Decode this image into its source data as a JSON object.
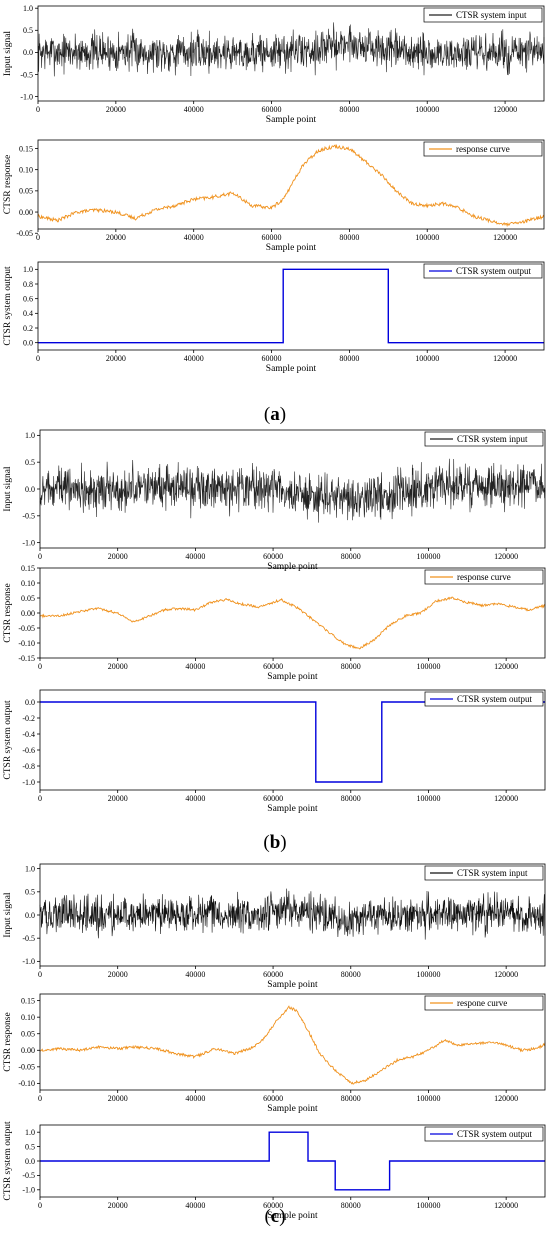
{
  "captions": [
    {
      "open": "(",
      "letter": "a",
      "close": ")"
    },
    {
      "open": "(",
      "letter": "b",
      "close": ")"
    },
    {
      "open": "(",
      "letter": "c",
      "close": ")"
    }
  ],
  "chart_data": [
    {
      "type": "line",
      "panel": "a",
      "xlabel": "Sample point",
      "ylabel": "Input signal",
      "xlim": [
        0,
        130000
      ],
      "ylim": [
        -1.1,
        1.05
      ],
      "xticks": [
        0,
        20000,
        40000,
        60000,
        80000,
        100000,
        120000
      ],
      "yticks": [
        -1.0,
        -0.5,
        0.0,
        0.5,
        1.0
      ],
      "legend": "top-right",
      "series": [
        {
          "name": "CTSR system input",
          "color": "#222222",
          "kind": "noise",
          "amplitude": 0.33,
          "drift": [
            [
              0,
              0
            ],
            [
              20000,
              0.02
            ],
            [
              40000,
              0
            ],
            [
              60000,
              0
            ],
            [
              70000,
              0.05
            ],
            [
              80000,
              0.22
            ],
            [
              88000,
              0.05
            ],
            [
              100000,
              -0.05
            ],
            [
              130000,
              0
            ]
          ]
        }
      ]
    },
    {
      "type": "line",
      "panel": "a",
      "xlabel": "Sample point",
      "ylabel": "CTSR response",
      "xlim": [
        0,
        130000
      ],
      "ylim": [
        -0.04,
        0.17
      ],
      "xticks": [
        0,
        20000,
        40000,
        60000,
        80000,
        100000,
        120000
      ],
      "yticks": [
        -0.05,
        0.0,
        0.05,
        0.1,
        0.15
      ],
      "legend": "top-right",
      "series": [
        {
          "name": "response curve",
          "color": "#f0921e",
          "kind": "curve",
          "jitter": 0.004,
          "points": [
            [
              0,
              -0.01
            ],
            [
              5000,
              -0.02
            ],
            [
              10000,
              0.0
            ],
            [
              15000,
              0.005
            ],
            [
              20000,
              0.0
            ],
            [
              25000,
              -0.015
            ],
            [
              30000,
              0.005
            ],
            [
              35000,
              0.015
            ],
            [
              40000,
              0.03
            ],
            [
              45000,
              0.035
            ],
            [
              50000,
              0.045
            ],
            [
              55000,
              0.015
            ],
            [
              60000,
              0.01
            ],
            [
              63000,
              0.03
            ],
            [
              68000,
              0.11
            ],
            [
              72000,
              0.145
            ],
            [
              76000,
              0.155
            ],
            [
              80000,
              0.15
            ],
            [
              84000,
              0.12
            ],
            [
              88000,
              0.09
            ],
            [
              92000,
              0.05
            ],
            [
              96000,
              0.02
            ],
            [
              100000,
              0.015
            ],
            [
              104000,
              0.02
            ],
            [
              108000,
              0.01
            ],
            [
              112000,
              -0.01
            ],
            [
              116000,
              -0.02
            ],
            [
              120000,
              -0.03
            ],
            [
              124000,
              -0.025
            ],
            [
              130000,
              -0.01
            ]
          ]
        }
      ]
    },
    {
      "type": "line",
      "panel": "a",
      "xlabel": "Sample point",
      "ylabel": "CTSR system output",
      "xlim": [
        0,
        130000
      ],
      "ylim": [
        -0.1,
        1.1
      ],
      "xticks": [
        0,
        20000,
        40000,
        60000,
        80000,
        100000,
        120000
      ],
      "yticks": [
        0.0,
        0.2,
        0.4,
        0.6,
        0.8,
        1.0
      ],
      "legend": "top-right",
      "series": [
        {
          "name": "CTSR system output",
          "color": "#0000dd",
          "kind": "step",
          "points": [
            [
              0,
              0
            ],
            [
              63000,
              0
            ],
            [
              63000,
              1
            ],
            [
              90000,
              1
            ],
            [
              90000,
              0
            ],
            [
              130000,
              0
            ]
          ]
        }
      ]
    },
    {
      "type": "line",
      "panel": "b",
      "xlabel": "Sample point",
      "ylabel": "Input signal",
      "xlim": [
        0,
        130000
      ],
      "ylim": [
        -1.1,
        1.1
      ],
      "xticks": [
        0,
        20000,
        40000,
        60000,
        80000,
        100000,
        120000
      ],
      "yticks": [
        -1.0,
        -0.5,
        0.0,
        0.5,
        1.0
      ],
      "legend": "top-right",
      "series": [
        {
          "name": "CTSR system input",
          "color": "#222222",
          "kind": "noise",
          "amplitude": 0.3,
          "drift": [
            [
              0,
              0
            ],
            [
              40000,
              0.02
            ],
            [
              62000,
              0
            ],
            [
              70000,
              -0.15
            ],
            [
              80000,
              -0.2
            ],
            [
              88000,
              -0.1
            ],
            [
              100000,
              0.05
            ],
            [
              130000,
              0.05
            ]
          ]
        }
      ]
    },
    {
      "type": "line",
      "panel": "b",
      "xlabel": "Sample point",
      "ylabel": "CTSR response",
      "xlim": [
        0,
        130000
      ],
      "ylim": [
        -0.15,
        0.15
      ],
      "xticks": [
        0,
        20000,
        40000,
        60000,
        80000,
        100000,
        120000
      ],
      "yticks": [
        -0.15,
        -0.1,
        -0.05,
        0.0,
        0.05,
        0.1,
        0.15
      ],
      "legend": "top-right",
      "series": [
        {
          "name": "response curve",
          "color": "#f0921e",
          "kind": "curve",
          "jitter": 0.004,
          "points": [
            [
              0,
              -0.01
            ],
            [
              5000,
              -0.01
            ],
            [
              10000,
              0.005
            ],
            [
              15000,
              0.015
            ],
            [
              20000,
              0.0
            ],
            [
              24000,
              -0.03
            ],
            [
              28000,
              -0.01
            ],
            [
              32000,
              0.01
            ],
            [
              36000,
              0.015
            ],
            [
              40000,
              0.01
            ],
            [
              44000,
              0.035
            ],
            [
              48000,
              0.045
            ],
            [
              52000,
              0.03
            ],
            [
              56000,
              0.02
            ],
            [
              60000,
              0.035
            ],
            [
              62000,
              0.045
            ],
            [
              66000,
              0.02
            ],
            [
              70000,
              -0.02
            ],
            [
              74000,
              -0.06
            ],
            [
              78000,
              -0.1
            ],
            [
              82000,
              -0.12
            ],
            [
              86000,
              -0.09
            ],
            [
              90000,
              -0.04
            ],
            [
              94000,
              -0.01
            ],
            [
              98000,
              0.0
            ],
            [
              102000,
              0.04
            ],
            [
              106000,
              0.05
            ],
            [
              110000,
              0.035
            ],
            [
              114000,
              0.025
            ],
            [
              118000,
              0.03
            ],
            [
              122000,
              0.02
            ],
            [
              126000,
              0.01
            ],
            [
              130000,
              0.025
            ]
          ]
        }
      ]
    },
    {
      "type": "line",
      "panel": "b",
      "xlabel": "Sample point",
      "ylabel": "CTSR system output",
      "xlim": [
        0,
        130000
      ],
      "ylim": [
        -1.1,
        0.15
      ],
      "xticks": [
        0,
        20000,
        40000,
        60000,
        80000,
        100000,
        120000
      ],
      "yticks": [
        -1.0,
        -0.8,
        -0.6,
        -0.4,
        -0.2,
        0.0
      ],
      "legend": "top-right",
      "series": [
        {
          "name": "CTSR system output",
          "color": "#0000dd",
          "kind": "step",
          "points": [
            [
              0,
              0
            ],
            [
              71000,
              0
            ],
            [
              71000,
              -1
            ],
            [
              88000,
              -1
            ],
            [
              88000,
              0
            ],
            [
              130000,
              0
            ]
          ]
        }
      ]
    },
    {
      "type": "line",
      "panel": "c",
      "xlabel": "Sample point",
      "ylabel": "Input signal",
      "xlim": [
        0,
        130000
      ],
      "ylim": [
        -1.1,
        1.1
      ],
      "xticks": [
        0,
        20000,
        40000,
        60000,
        80000,
        100000,
        120000
      ],
      "yticks": [
        -1.0,
        -0.5,
        0.0,
        0.5,
        1.0
      ],
      "legend": "top-right",
      "series": [
        {
          "name": "CTSR system input",
          "color": "#111111",
          "kind": "noise",
          "amplitude": 0.3,
          "drift": [
            [
              0,
              0
            ],
            [
              55000,
              0.02
            ],
            [
              64000,
              0.15
            ],
            [
              70000,
              0.05
            ],
            [
              78000,
              -0.1
            ],
            [
              85000,
              -0.05
            ],
            [
              100000,
              0.02
            ],
            [
              130000,
              0
            ]
          ]
        }
      ]
    },
    {
      "type": "line",
      "panel": "c",
      "xlabel": "Sample point",
      "ylabel": "CTSR response",
      "xlim": [
        0,
        130000
      ],
      "ylim": [
        -0.12,
        0.17
      ],
      "xticks": [
        0,
        20000,
        40000,
        60000,
        80000,
        100000,
        120000
      ],
      "yticks": [
        -0.1,
        -0.05,
        0.0,
        0.05,
        0.1,
        0.15
      ],
      "legend": "top-right",
      "series": [
        {
          "name": "respone curve",
          "color": "#f0921e",
          "kind": "curve",
          "jitter": 0.004,
          "points": [
            [
              0,
              0.0
            ],
            [
              5000,
              0.005
            ],
            [
              10000,
              0.0
            ],
            [
              15000,
              0.01
            ],
            [
              20000,
              0.005
            ],
            [
              25000,
              0.01
            ],
            [
              30000,
              0.005
            ],
            [
              35000,
              -0.01
            ],
            [
              40000,
              -0.02
            ],
            [
              45000,
              0.005
            ],
            [
              50000,
              -0.01
            ],
            [
              55000,
              0.01
            ],
            [
              58000,
              0.04
            ],
            [
              61000,
              0.09
            ],
            [
              64000,
              0.13
            ],
            [
              66000,
              0.12
            ],
            [
              69000,
              0.06
            ],
            [
              72000,
              -0.01
            ],
            [
              76000,
              -0.06
            ],
            [
              80000,
              -0.1
            ],
            [
              84000,
              -0.09
            ],
            [
              88000,
              -0.06
            ],
            [
              92000,
              -0.03
            ],
            [
              96000,
              -0.02
            ],
            [
              100000,
              0.0
            ],
            [
              104000,
              0.03
            ],
            [
              108000,
              0.015
            ],
            [
              112000,
              0.02
            ],
            [
              116000,
              0.025
            ],
            [
              120000,
              0.015
            ],
            [
              124000,
              0.0
            ],
            [
              128000,
              0.005
            ],
            [
              130000,
              0.02
            ]
          ]
        }
      ]
    },
    {
      "type": "line",
      "panel": "c",
      "xlabel": "Sample point",
      "ylabel": "CTSR system output",
      "xlim": [
        0,
        130000
      ],
      "ylim": [
        -1.25,
        1.25
      ],
      "xticks": [
        0,
        20000,
        40000,
        60000,
        80000,
        100000,
        120000
      ],
      "yticks": [
        -1.0,
        -0.5,
        0.0,
        0.5,
        1.0
      ],
      "legend": "top-right",
      "series": [
        {
          "name": "CTSR system output",
          "color": "#0000dd",
          "kind": "step",
          "points": [
            [
              0,
              0
            ],
            [
              59000,
              0
            ],
            [
              59000,
              1
            ],
            [
              69000,
              1
            ],
            [
              69000,
              0
            ],
            [
              76000,
              0
            ],
            [
              76000,
              -1
            ],
            [
              90000,
              -1
            ],
            [
              90000,
              0
            ],
            [
              130000,
              0
            ]
          ]
        }
      ]
    }
  ]
}
